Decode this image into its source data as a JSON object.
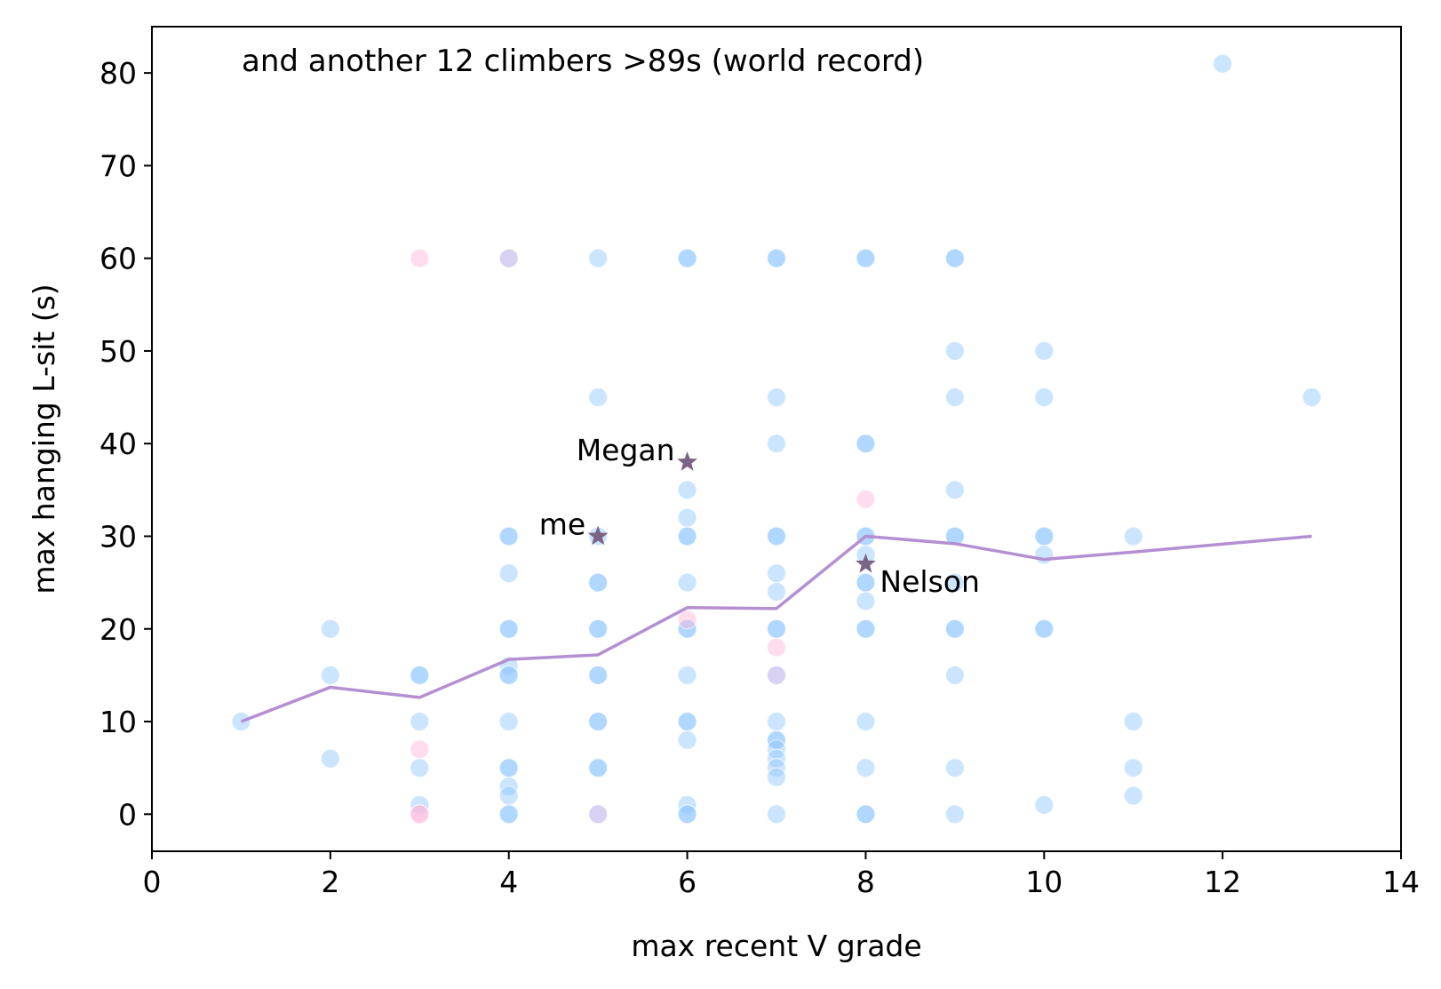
{
  "chart_data": {
    "type": "scatter",
    "xlabel": "max recent V grade",
    "ylabel": "max hanging L-sit (s)",
    "xlim": [
      0,
      14
    ],
    "ylim": [
      -4,
      85
    ],
    "xticks": [
      0,
      2,
      4,
      6,
      8,
      10,
      12,
      14
    ],
    "yticks": [
      0,
      10,
      20,
      30,
      40,
      50,
      60,
      70,
      80
    ],
    "grid": false,
    "note": "and another 12 climbers >89s (world record)",
    "colors": {
      "male": "#8ec5ff",
      "female": "#ffb3d9",
      "other": "#a99ae0",
      "mean_line": "#b48fd2",
      "highlight": "#7b6384"
    },
    "series": [
      {
        "group": "male",
        "points": [
          [
            1,
            10
          ],
          [
            2,
            20
          ],
          [
            2,
            15
          ],
          [
            2,
            6
          ],
          [
            3,
            15
          ],
          [
            3,
            15
          ],
          [
            3,
            10
          ],
          [
            3,
            5
          ],
          [
            3,
            1
          ],
          [
            4,
            30
          ],
          [
            4,
            30
          ],
          [
            4,
            26
          ],
          [
            4,
            20
          ],
          [
            4,
            20
          ],
          [
            4,
            16
          ],
          [
            4,
            15
          ],
          [
            4,
            15
          ],
          [
            4,
            10
          ],
          [
            4,
            5
          ],
          [
            4,
            5
          ],
          [
            4,
            3
          ],
          [
            4,
            2
          ],
          [
            4,
            0
          ],
          [
            4,
            0
          ],
          [
            5,
            60
          ],
          [
            5,
            45
          ],
          [
            5,
            30
          ],
          [
            5,
            25
          ],
          [
            5,
            25
          ],
          [
            5,
            20
          ],
          [
            5,
            20
          ],
          [
            5,
            15
          ],
          [
            5,
            15
          ],
          [
            5,
            10
          ],
          [
            5,
            10
          ],
          [
            5,
            5
          ],
          [
            5,
            5
          ],
          [
            6,
            60
          ],
          [
            6,
            60
          ],
          [
            6,
            35
          ],
          [
            6,
            32
          ],
          [
            6,
            30
          ],
          [
            6,
            30
          ],
          [
            6,
            25
          ],
          [
            6,
            20
          ],
          [
            6,
            20
          ],
          [
            6,
            15
          ],
          [
            6,
            10
          ],
          [
            6,
            10
          ],
          [
            6,
            8
          ],
          [
            6,
            1
          ],
          [
            6,
            0
          ],
          [
            6,
            0
          ],
          [
            7,
            60
          ],
          [
            7,
            60
          ],
          [
            7,
            45
          ],
          [
            7,
            40
          ],
          [
            7,
            30
          ],
          [
            7,
            30
          ],
          [
            7,
            26
          ],
          [
            7,
            24
          ],
          [
            7,
            20
          ],
          [
            7,
            20
          ],
          [
            7,
            10
          ],
          [
            7,
            8
          ],
          [
            7,
            8
          ],
          [
            7,
            7
          ],
          [
            7,
            6
          ],
          [
            7,
            5
          ],
          [
            7,
            4
          ],
          [
            7,
            0
          ],
          [
            8,
            60
          ],
          [
            8,
            60
          ],
          [
            8,
            40
          ],
          [
            8,
            40
          ],
          [
            8,
            30
          ],
          [
            8,
            30
          ],
          [
            8,
            28
          ],
          [
            8,
            25
          ],
          [
            8,
            25
          ],
          [
            8,
            23
          ],
          [
            8,
            20
          ],
          [
            8,
            20
          ],
          [
            8,
            10
          ],
          [
            8,
            5
          ],
          [
            8,
            0
          ],
          [
            8,
            0
          ],
          [
            9,
            60
          ],
          [
            9,
            60
          ],
          [
            9,
            50
          ],
          [
            9,
            45
          ],
          [
            9,
            35
          ],
          [
            9,
            30
          ],
          [
            9,
            30
          ],
          [
            9,
            25
          ],
          [
            9,
            20
          ],
          [
            9,
            20
          ],
          [
            9,
            15
          ],
          [
            9,
            5
          ],
          [
            9,
            0
          ],
          [
            10,
            50
          ],
          [
            10,
            45
          ],
          [
            10,
            30
          ],
          [
            10,
            30
          ],
          [
            10,
            28
          ],
          [
            10,
            20
          ],
          [
            10,
            20
          ],
          [
            10,
            1
          ],
          [
            11,
            30
          ],
          [
            11,
            10
          ],
          [
            11,
            5
          ],
          [
            11,
            2
          ],
          [
            12,
            81
          ],
          [
            13,
            45
          ]
        ]
      },
      {
        "group": "female",
        "points": [
          [
            3,
            60
          ],
          [
            3,
            7
          ],
          [
            3,
            0
          ],
          [
            3,
            0
          ],
          [
            6,
            21
          ],
          [
            7,
            18
          ],
          [
            8,
            34
          ]
        ]
      },
      {
        "group": "other",
        "points": [
          [
            4,
            60
          ],
          [
            5,
            0
          ],
          [
            7,
            15
          ]
        ]
      }
    ],
    "mean_line": {
      "x": [
        1,
        2,
        3,
        4,
        5,
        6,
        7,
        8,
        9,
        10,
        11,
        13
      ],
      "y": [
        10,
        13.7,
        12.6,
        16.7,
        17.2,
        22.3,
        22.2,
        30,
        29.2,
        27.5,
        28.3,
        30
      ]
    },
    "highlights": [
      {
        "name": "Megan",
        "x": 6,
        "y": 38,
        "label_side": "left"
      },
      {
        "name": "me",
        "x": 5,
        "y": 30,
        "label_side": "left"
      },
      {
        "name": "Nelson",
        "x": 8,
        "y": 27,
        "label_side": "right"
      }
    ]
  }
}
